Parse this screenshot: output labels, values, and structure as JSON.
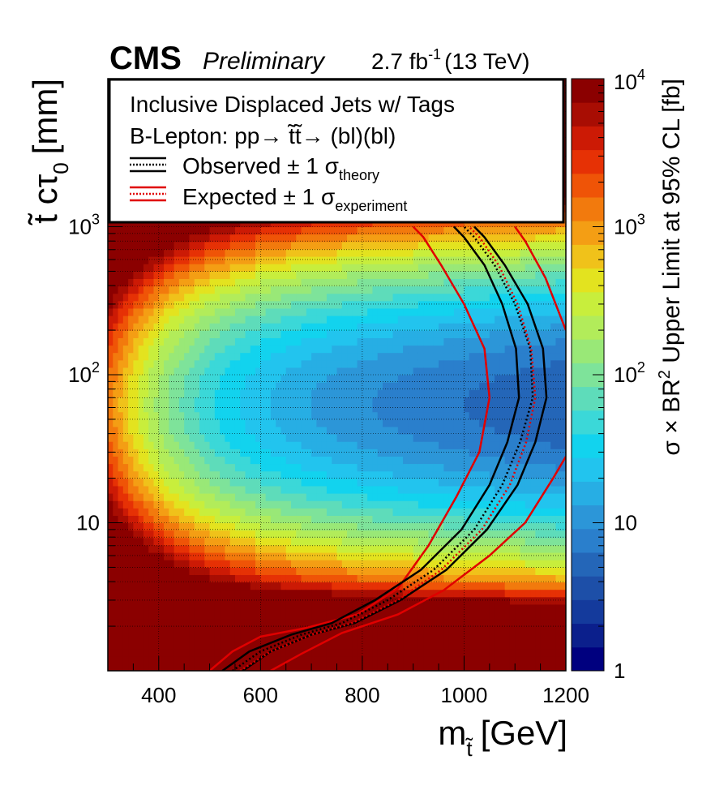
{
  "header": {
    "experiment": "CMS",
    "status": "Preliminary",
    "lumi": "2.7 fb",
    "lumi_exp": "-1",
    "energy": "(13 TeV)"
  },
  "chart_data": {
    "type": "heatmap",
    "x_axis": {
      "label_main": "m",
      "label_sub": "t̃",
      "label_unit": "[GeV]",
      "range": [
        300,
        1200
      ],
      "ticks": [
        {
          "value": 400,
          "label": "400"
        },
        {
          "value": 600,
          "label": "600"
        },
        {
          "value": 800,
          "label": "800"
        },
        {
          "value": 1000,
          "label": "1000"
        },
        {
          "value": 1200,
          "label": "1200"
        }
      ]
    },
    "y_axis": {
      "label_main": "t̃ cτ",
      "label_sub": "0",
      "label_unit": "[mm]",
      "scale": "log",
      "range": [
        1,
        10000
      ],
      "ticks": [
        {
          "value": 10,
          "label": "10",
          "exp": ""
        },
        {
          "value": 100,
          "label": "10",
          "exp": "2"
        },
        {
          "value": 1000,
          "label": "10",
          "exp": "3"
        }
      ]
    },
    "z_axis": {
      "label": "σ × BR",
      "label_exp": "2",
      "label_rest": " Upper Limit at 95% CL [fb]",
      "scale": "log",
      "range": [
        1,
        10000
      ],
      "ticks": [
        {
          "value": 1,
          "label": "1",
          "exp": ""
        },
        {
          "value": 10,
          "label": "10",
          "exp": ""
        },
        {
          "value": 100,
          "label": "10",
          "exp": "2"
        },
        {
          "value": 1000,
          "label": "10",
          "exp": "3"
        },
        {
          "value": 10000,
          "label": "10",
          "exp": "4"
        }
      ],
      "palette": [
        "#00007f",
        "#0b1f8c",
        "#143a9c",
        "#1d4fa8",
        "#2466b8",
        "#2a7fcc",
        "#2c96d8",
        "#27aee4",
        "#22c4ee",
        "#12d3ee",
        "#3bd8d8",
        "#5edcba",
        "#7ee39a",
        "#99e877",
        "#b2ec5a",
        "#c8ee3c",
        "#e3e31f",
        "#f0c21a",
        "#f49e14",
        "#f27a0d",
        "#ef5407",
        "#e63105",
        "#cc1a05",
        "#a80d03",
        "#8b0000"
      ]
    },
    "grid": true,
    "legend": {
      "placement": "top-left",
      "lines": [
        "Inclusive Displaced Jets w/ Tags",
        "B-Lepton: pp→ t̃t̃→ (bl)(bl)"
      ],
      "observed": {
        "label": "Observed ± 1 σ",
        "sub": "theory"
      },
      "expected": {
        "label": "Expected ± 1 σ",
        "sub": "experiment"
      }
    },
    "observed_contour": [
      {
        "x": 545,
        "y": 1.0
      },
      {
        "x": 600,
        "y": 1.35
      },
      {
        "x": 680,
        "y": 1.75
      },
      {
        "x": 760,
        "y": 2.1
      },
      {
        "x": 850,
        "y": 3.0
      },
      {
        "x": 940,
        "y": 4.8
      },
      {
        "x": 1020,
        "y": 9
      },
      {
        "x": 1075,
        "y": 18
      },
      {
        "x": 1110,
        "y": 35
      },
      {
        "x": 1135,
        "y": 70
      },
      {
        "x": 1130,
        "y": 150
      },
      {
        "x": 1100,
        "y": 300
      },
      {
        "x": 1060,
        "y": 550
      },
      {
        "x": 1020,
        "y": 850
      },
      {
        "x": 1000,
        "y": 1000
      }
    ],
    "observed_band_upper": [
      {
        "x": 565,
        "y": 1.0
      },
      {
        "x": 620,
        "y": 1.35
      },
      {
        "x": 700,
        "y": 1.75
      },
      {
        "x": 785,
        "y": 2.1
      },
      {
        "x": 875,
        "y": 3.0
      },
      {
        "x": 965,
        "y": 4.8
      },
      {
        "x": 1045,
        "y": 9
      },
      {
        "x": 1105,
        "y": 18
      },
      {
        "x": 1140,
        "y": 35
      },
      {
        "x": 1162,
        "y": 70
      },
      {
        "x": 1155,
        "y": 150
      },
      {
        "x": 1125,
        "y": 300
      },
      {
        "x": 1080,
        "y": 550
      },
      {
        "x": 1040,
        "y": 850
      },
      {
        "x": 1020,
        "y": 1000
      }
    ],
    "observed_band_lower": [
      {
        "x": 525,
        "y": 1.0
      },
      {
        "x": 578,
        "y": 1.35
      },
      {
        "x": 660,
        "y": 1.75
      },
      {
        "x": 740,
        "y": 2.1
      },
      {
        "x": 825,
        "y": 3.0
      },
      {
        "x": 915,
        "y": 4.8
      },
      {
        "x": 995,
        "y": 9
      },
      {
        "x": 1050,
        "y": 18
      },
      {
        "x": 1085,
        "y": 35
      },
      {
        "x": 1108,
        "y": 70
      },
      {
        "x": 1102,
        "y": 150
      },
      {
        "x": 1075,
        "y": 300
      },
      {
        "x": 1040,
        "y": 550
      },
      {
        "x": 1000,
        "y": 850
      },
      {
        "x": 980,
        "y": 1000
      }
    ],
    "expected_contour": [
      {
        "x": 560,
        "y": 1.0
      },
      {
        "x": 620,
        "y": 1.35
      },
      {
        "x": 700,
        "y": 1.75
      },
      {
        "x": 780,
        "y": 2.1
      },
      {
        "x": 870,
        "y": 3.0
      },
      {
        "x": 955,
        "y": 4.8
      },
      {
        "x": 1035,
        "y": 9
      },
      {
        "x": 1090,
        "y": 18
      },
      {
        "x": 1122,
        "y": 35
      },
      {
        "x": 1140,
        "y": 70
      },
      {
        "x": 1132,
        "y": 150
      },
      {
        "x": 1105,
        "y": 300
      },
      {
        "x": 1068,
        "y": 550
      },
      {
        "x": 1030,
        "y": 850
      },
      {
        "x": 1010,
        "y": 1000
      }
    ],
    "expected_band_lower": [
      {
        "x": 500,
        "y": 1.0
      },
      {
        "x": 545,
        "y": 1.35
      },
      {
        "x": 600,
        "y": 1.7
      },
      {
        "x": 690,
        "y": 1.95
      },
      {
        "x": 790,
        "y": 2.4
      },
      {
        "x": 870,
        "y": 3.6
      },
      {
        "x": 930,
        "y": 7
      },
      {
        "x": 985,
        "y": 15
      },
      {
        "x": 1030,
        "y": 30
      },
      {
        "x": 1050,
        "y": 70
      },
      {
        "x": 1040,
        "y": 150
      },
      {
        "x": 1000,
        "y": 300
      },
      {
        "x": 955,
        "y": 550
      },
      {
        "x": 920,
        "y": 850
      },
      {
        "x": 900,
        "y": 1000
      }
    ],
    "expected_band_upper": [
      {
        "x": 620,
        "y": 1.0
      },
      {
        "x": 680,
        "y": 1.3
      },
      {
        "x": 760,
        "y": 1.8
      },
      {
        "x": 870,
        "y": 2.4
      },
      {
        "x": 960,
        "y": 3.5
      },
      {
        "x": 1050,
        "y": 6
      },
      {
        "x": 1120,
        "y": 10
      },
      {
        "x": 1175,
        "y": 20
      },
      {
        "x": 1200,
        "y": 28
      }
    ],
    "expected_band_upper_top": [
      {
        "x": 1200,
        "y": 200
      },
      {
        "x": 1160,
        "y": 450
      },
      {
        "x": 1120,
        "y": 800
      },
      {
        "x": 1100,
        "y": 1000
      }
    ]
  }
}
